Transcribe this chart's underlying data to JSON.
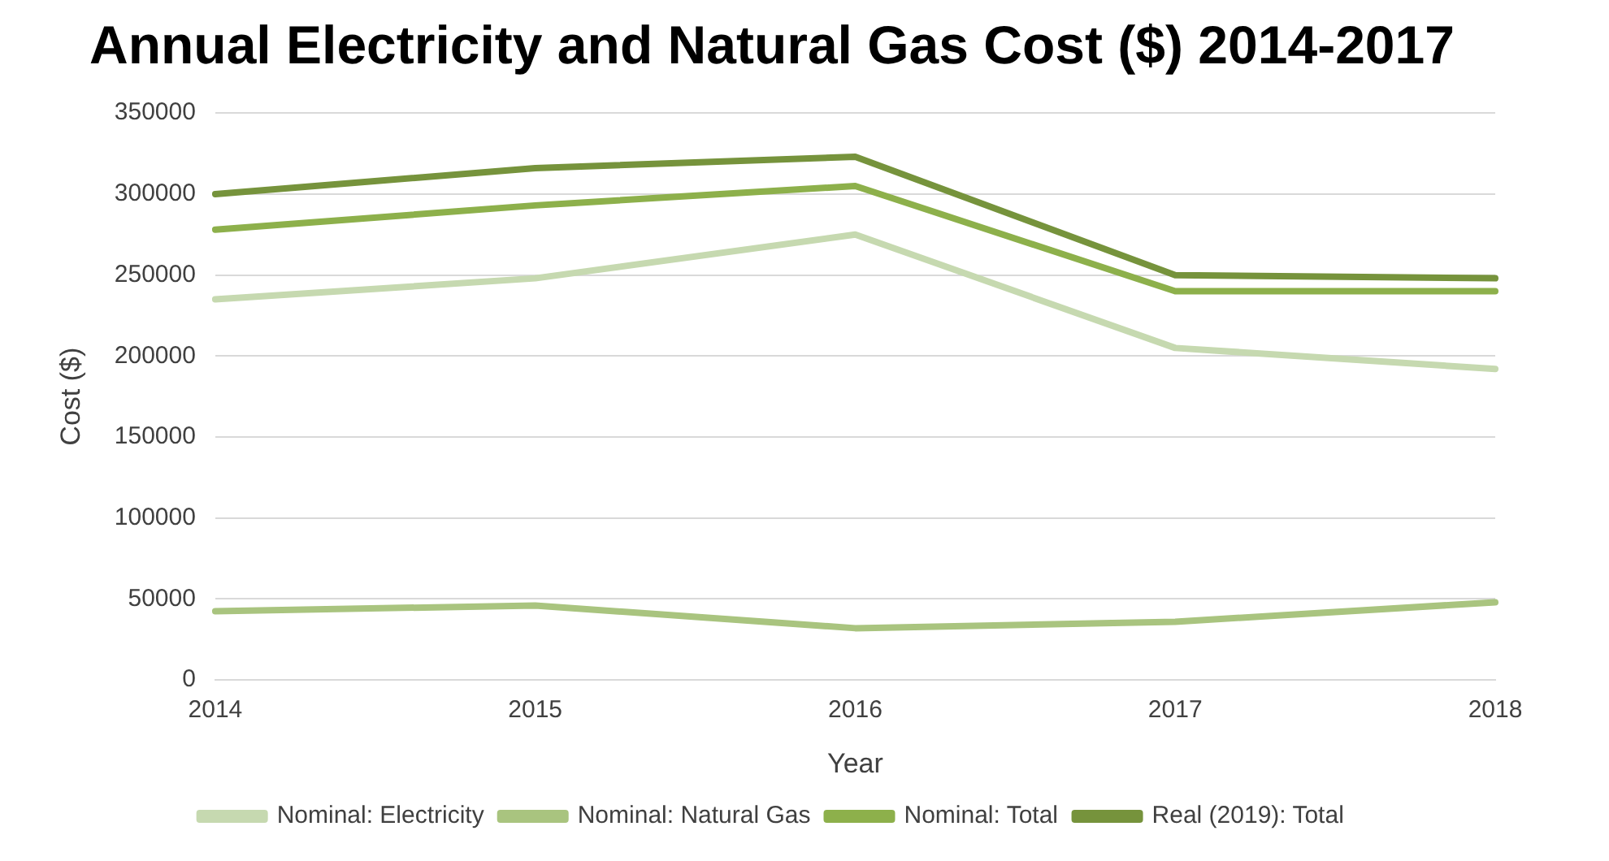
{
  "chart_data": {
    "type": "line",
    "title": "Annual Electricity and Natural Gas Cost ($) 2014-2017",
    "xlabel": "Year",
    "ylabel": "Cost ($)",
    "categories": [
      "2014",
      "2015",
      "2016",
      "2017",
      "2018"
    ],
    "series": [
      {
        "name": "Nominal: Electricity",
        "color": "#c6d9b0",
        "values": [
          235000,
          248000,
          275000,
          205000,
          192000
        ]
      },
      {
        "name": "Nominal: Natural Gas",
        "color": "#a9c47f",
        "values": [
          42500,
          46000,
          32000,
          36000,
          48000
        ]
      },
      {
        "name": "Nominal: Total",
        "color": "#8db04b",
        "values": [
          278000,
          293000,
          305000,
          240000,
          240000
        ]
      },
      {
        "name": "Real (2019): Total",
        "color": "#76933c",
        "values": [
          300000,
          316000,
          323000,
          250000,
          248000
        ]
      }
    ],
    "ylim": [
      0,
      350000
    ],
    "yticks": [
      0,
      50000,
      100000,
      150000,
      200000,
      250000,
      300000,
      350000
    ],
    "grid": "y",
    "legend": "bottom",
    "marker": "none",
    "line_style": "solid"
  }
}
